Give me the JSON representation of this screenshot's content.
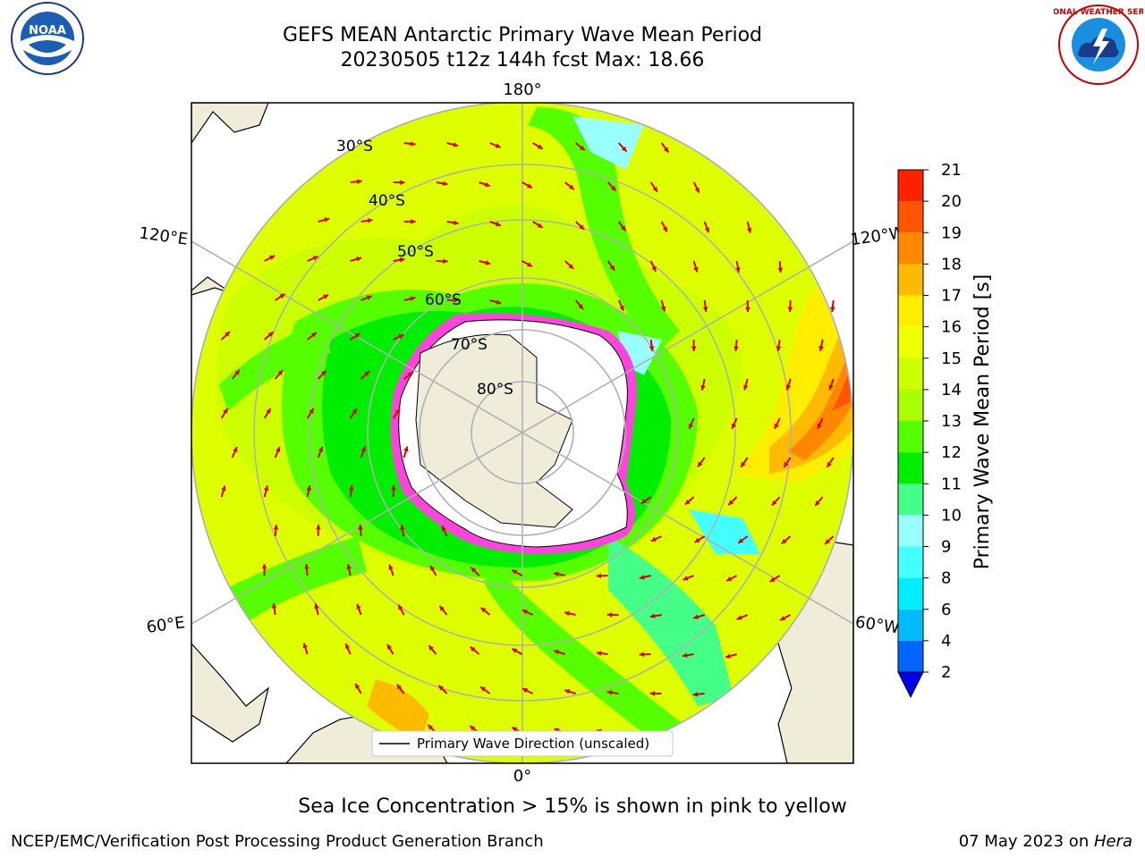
{
  "header": {
    "title_line1": "GEFS MEAN Antarctic Primary Wave Mean Period",
    "title_line2": "20230505 t12z 144h fcst   Max: 18.66"
  },
  "logos": {
    "left": {
      "icon": "noaa-logo",
      "text": "NOAA"
    },
    "right": {
      "icon": "nws-logo",
      "text": "NATIONAL WEATHER SERVICE"
    }
  },
  "map": {
    "longitude_labels": {
      "top": "180°",
      "bottom": "0°",
      "upper_left": "120°E",
      "upper_right": "120°W",
      "lower_left": "60°E",
      "lower_right": "60°W"
    },
    "latitude_labels": [
      "30°S",
      "40°S",
      "50°S",
      "60°S",
      "70°S",
      "80°S"
    ],
    "legend_label": "Primary Wave Direction (unscaled)"
  },
  "colorbar": {
    "label": "Primary Wave Mean Period [s]",
    "ticks": [
      "2",
      "4",
      "6",
      "8",
      "9",
      "10",
      "11",
      "12",
      "13",
      "14",
      "15",
      "16",
      "17",
      "18",
      "19",
      "20",
      "21"
    ],
    "colors": [
      "#0066ff",
      "#00bbff",
      "#00eeff",
      "#44ffff",
      "#99ffff",
      "#44ff88",
      "#00ee00",
      "#55ff00",
      "#aaff00",
      "#ccff00",
      "#eeff00",
      "#ffee00",
      "#ffbb00",
      "#ff8800",
      "#ff5500",
      "#ff2200"
    ],
    "underflow_color": "#0000ee"
  },
  "caption": "Sea Ice Concentration > 15% is shown in pink to yellow",
  "footer": {
    "left": "NCEP/EMC/Verification Post Processing Product Generation Branch",
    "right_date": "07 May 2023 on ",
    "right_host": "Hera"
  }
}
